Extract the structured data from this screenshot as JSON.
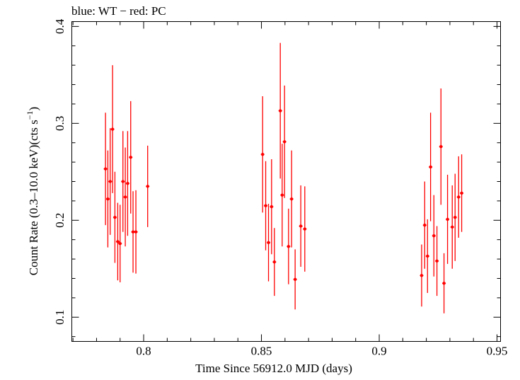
{
  "chart_data": {
    "type": "scatter",
    "title": "blue: WT − red: PC",
    "xlabel": "Time Since 56912.0 MJD (days)",
    "ylabel_main": "Count Rate (0.3–10.0 keV)(cts s",
    "ylabel_sup": "−1",
    "ylabel_close": ")",
    "xlim": [
      0.7695,
      0.9515
    ],
    "ylim": [
      0.075,
      0.405
    ],
    "xticks": [
      {
        "value": 0.8,
        "label": "0.8"
      },
      {
        "value": 0.85,
        "label": "0.85"
      },
      {
        "value": 0.9,
        "label": "0.9"
      },
      {
        "value": 0.95,
        "label": "0.95"
      }
    ],
    "yticks": [
      {
        "value": 0.1,
        "label": "0.1"
      },
      {
        "value": 0.2,
        "label": "0.2"
      },
      {
        "value": 0.3,
        "label": "0.3"
      },
      {
        "value": 0.4,
        "label": "0.4"
      }
    ],
    "grid": false,
    "series": [
      {
        "color": "#ff0000",
        "x": [
          0.7838,
          0.7848,
          0.7858,
          0.7868,
          0.7878,
          0.789,
          0.79,
          0.7912,
          0.7922,
          0.7932,
          0.7945,
          0.7955,
          0.7967,
          0.8017,
          0.8505,
          0.8518,
          0.853,
          0.8543,
          0.8555,
          0.858,
          0.8588,
          0.8598,
          0.8615,
          0.8628,
          0.8643,
          0.8667,
          0.8684,
          0.918,
          0.9193,
          0.9205,
          0.9218,
          0.9232,
          0.9245,
          0.9262,
          0.9275,
          0.929,
          0.931,
          0.9322,
          0.9337,
          0.935
        ],
        "y": [
          0.253,
          0.222,
          0.24,
          0.294,
          0.203,
          0.178,
          0.176,
          0.24,
          0.224,
          0.238,
          0.265,
          0.188,
          0.188,
          0.235,
          0.268,
          0.215,
          0.177,
          0.214,
          0.157,
          0.313,
          0.226,
          0.281,
          0.173,
          0.222,
          0.139,
          0.194,
          0.191,
          0.143,
          0.195,
          0.163,
          0.255,
          0.184,
          0.158,
          0.276,
          0.135,
          0.201,
          0.193,
          0.203,
          0.224,
          0.228
        ],
        "yerr": [
          0.058,
          0.05,
          0.055,
          0.066,
          0.047,
          0.04,
          0.04,
          0.052,
          0.051,
          0.054,
          0.058,
          0.042,
          0.043,
          0.042,
          0.06,
          0.046,
          0.04,
          0.049,
          0.035,
          0.07,
          0.053,
          0.058,
          0.039,
          0.05,
          0.031,
          0.042,
          0.044,
          0.032,
          0.045,
          0.038,
          0.056,
          0.042,
          0.036,
          0.06,
          0.031,
          0.046,
          0.043,
          0.045,
          0.042,
          0.04
        ]
      }
    ]
  }
}
